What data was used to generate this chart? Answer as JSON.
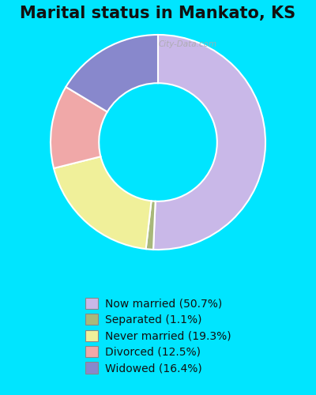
{
  "title": "Marital status in Mankato, KS",
  "slices": [
    {
      "label": "Now married (50.7%)",
      "value": 50.7,
      "color": "#c9b8e8"
    },
    {
      "label": "Separated (1.1%)",
      "value": 1.1,
      "color": "#a8b87a"
    },
    {
      "label": "Never married (19.3%)",
      "value": 19.3,
      "color": "#f0f09a"
    },
    {
      "label": "Divorced (12.5%)",
      "value": 12.5,
      "color": "#f0a8a8"
    },
    {
      "label": "Widowed (16.4%)",
      "value": 16.4,
      "color": "#8888cc"
    }
  ],
  "start_angle": 90,
  "background_color": "#00e5ff",
  "chart_bg_top": "#d4edd8",
  "chart_bg_bottom": "#c8f0f0",
  "title_fontsize": 15,
  "legend_fontsize": 10,
  "watermark": "City-Data.com"
}
